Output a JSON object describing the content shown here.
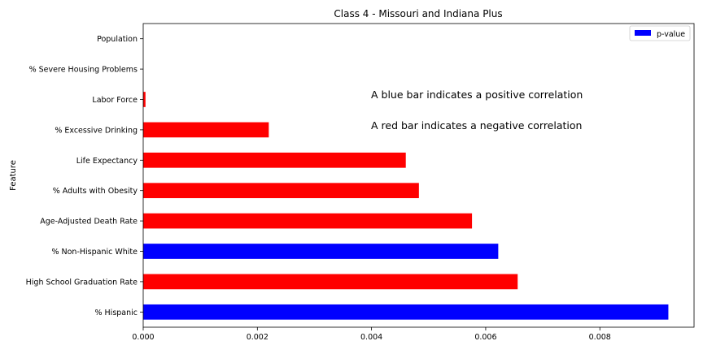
{
  "chart_data": {
    "type": "bar",
    "orientation": "horizontal",
    "title": "Class 4 - Missouri and Indiana Plus",
    "xlabel": "",
    "ylabel": "Feature",
    "xlim": [
      0,
      0.00965
    ],
    "xticks": [
      "0.000",
      "0.002",
      "0.004",
      "0.006",
      "0.008"
    ],
    "legend": {
      "position": "top-right",
      "entries": [
        "p-value"
      ]
    },
    "categories": [
      "Population",
      "% Severe Housing Problems",
      "Labor Force",
      "% Excessive Drinking",
      "Life Expectancy",
      "% Adults with Obesity",
      "Age-Adjusted Death Rate",
      "% Non-Hispanic White",
      "High School Graduation Rate",
      "% Hispanic"
    ],
    "series": [
      {
        "name": "p-value",
        "values": [
          0.0,
          0.0,
          4e-05,
          0.0022,
          0.0046,
          0.00483,
          0.00576,
          0.00622,
          0.00656,
          0.0092
        ],
        "colors": [
          "#ff0000",
          "#ff0000",
          "#ff0000",
          "#ff0000",
          "#ff0000",
          "#ff0000",
          "#ff0000",
          "#0000ff",
          "#ff0000",
          "#0000ff"
        ]
      }
    ],
    "annotations": [
      "A blue bar indicates a positive correlation",
      "A red bar indicates a negative correlation"
    ],
    "colors": {
      "positive": "#0000ff",
      "negative": "#ff0000"
    }
  }
}
